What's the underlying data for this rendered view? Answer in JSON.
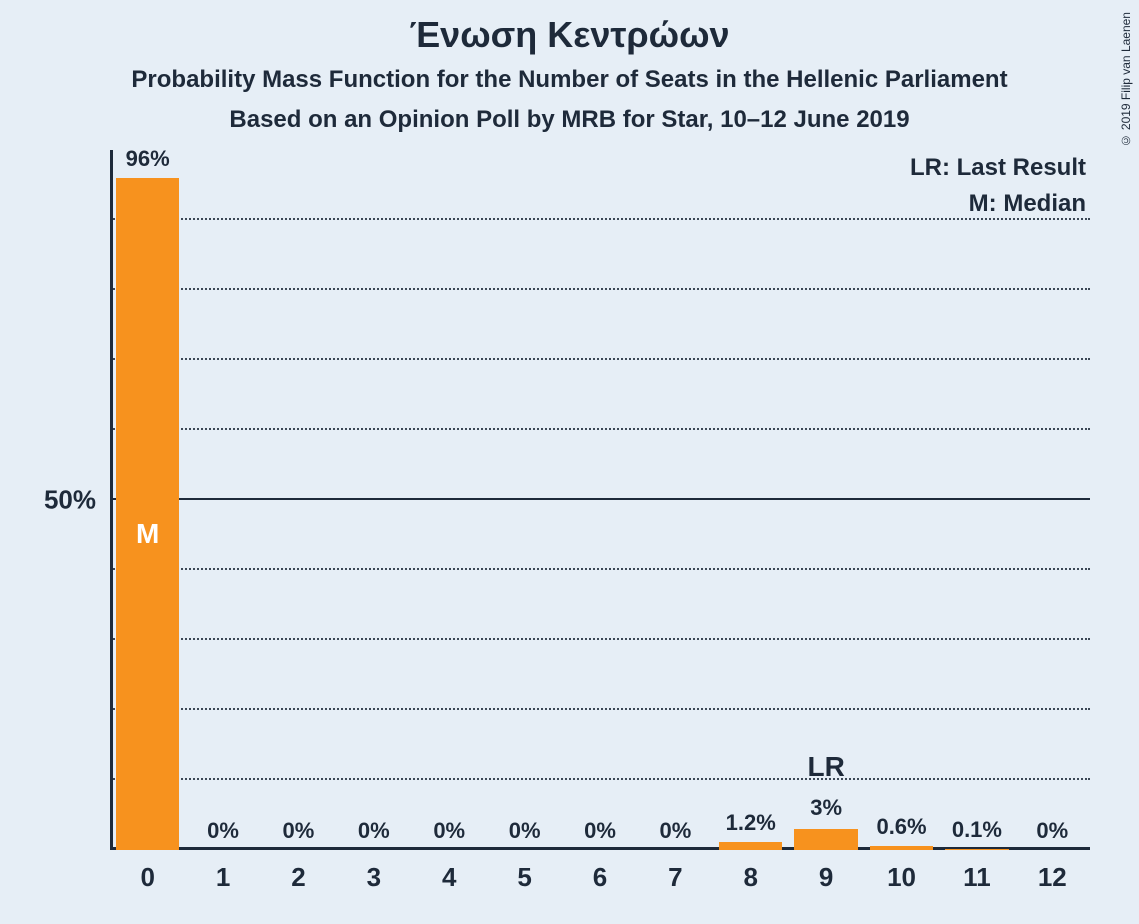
{
  "title": "Ένωση Κεντρώων",
  "subtitle1": "Probability Mass Function for the Number of Seats in the Hellenic Parliament",
  "subtitle2": "Based on an Opinion Poll by MRB for Star, 10–12 June 2019",
  "copyright": "© 2019 Filip van Laenen",
  "legend": {
    "lr": "LR: Last Result",
    "m": "M: Median"
  },
  "chart": {
    "type": "bar",
    "background_color": "#e6eef6",
    "bar_color": "#f7921e",
    "text_color": "#1e2a3a",
    "grid_color": "#1e2a3a",
    "title_fontsize": 36,
    "subtitle_fontsize": 24,
    "label_fontsize": 22,
    "tick_fontsize": 26,
    "legend_fontsize": 24,
    "ylim": [
      0,
      100
    ],
    "ytick_step": 10,
    "y_midline": 50,
    "y_axis_label": "50%",
    "bar_width": 0.84,
    "categories": [
      "0",
      "1",
      "2",
      "3",
      "4",
      "5",
      "6",
      "7",
      "8",
      "9",
      "10",
      "11",
      "12"
    ],
    "values": [
      96,
      0,
      0,
      0,
      0,
      0,
      0,
      0,
      1.2,
      3,
      0.6,
      0.1,
      0
    ],
    "value_labels": [
      "96%",
      "0%",
      "0%",
      "0%",
      "0%",
      "0%",
      "0%",
      "0%",
      "1.2%",
      "3%",
      "0.6%",
      "0.1%",
      "0%"
    ],
    "median_index": 0,
    "median_marker": "M",
    "last_result_index": 9,
    "last_result_marker": "LR"
  }
}
